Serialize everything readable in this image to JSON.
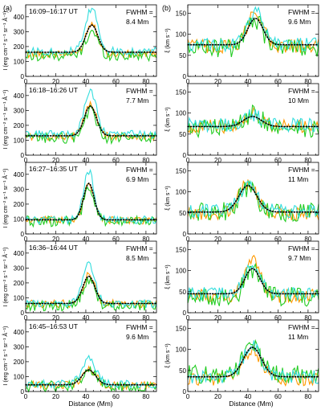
{
  "figure": {
    "panel_labels": [
      "(a)",
      "(b)"
    ],
    "xlabel": "Distance (Mm)",
    "left_ylabel": "I (erg cm⁻² s⁻¹ sr⁻¹ Å⁻¹)",
    "right_ylabel": "ξ (km s⁻¹)",
    "fwhm_label": "FWHM =",
    "colors": {
      "cyan": "#33dddd",
      "orange": "#ff9900",
      "green": "#22cc22",
      "fit": "#000000"
    }
  },
  "chart_data": [
    {
      "type": "line",
      "panel": "a-1",
      "time": "16:09–16:17 UT",
      "fwhm": "8.4 Mm",
      "xlim": [
        0,
        87
      ],
      "ylim": [
        0,
        480
      ],
      "yticks": [
        0,
        100,
        200,
        300,
        400
      ],
      "xticks": [
        0,
        20,
        40,
        60,
        80
      ],
      "base": {
        "cyan": 170,
        "orange": 150,
        "green": 140,
        "fit": 162
      },
      "peak": {
        "cyan": 455,
        "orange": 360,
        "green": 305,
        "fit": 345
      },
      "center": 44,
      "width": 4
    },
    {
      "type": "line",
      "panel": "a-2",
      "time": "16:18–16:26 UT",
      "fwhm": "7.7 Mm",
      "xlim": [
        0,
        87
      ],
      "ylim": [
        0,
        480
      ],
      "yticks": [
        0,
        100,
        200,
        300,
        400
      ],
      "xticks": [
        0,
        20,
        40,
        60,
        80
      ],
      "base": {
        "cyan": 140,
        "orange": 125,
        "green": 115,
        "fit": 130
      },
      "peak": {
        "cyan": 430,
        "orange": 335,
        "green": 300,
        "fit": 330
      },
      "center": 43,
      "width": 4
    },
    {
      "type": "line",
      "panel": "a-3",
      "time": "16:27–16:35 UT",
      "fwhm": "6.9 Mm",
      "xlim": [
        0,
        87
      ],
      "ylim": [
        0,
        480
      ],
      "yticks": [
        0,
        100,
        200,
        300,
        400
      ],
      "xticks": [
        0,
        20,
        40,
        60,
        80
      ],
      "base": {
        "cyan": 95,
        "orange": 92,
        "green": 85,
        "fit": 95
      },
      "peak": {
        "cyan": 420,
        "orange": 335,
        "green": 290,
        "fit": 340
      },
      "center": 42,
      "width": 3.5
    },
    {
      "type": "line",
      "panel": "a-4",
      "time": "16:36–16:44 UT",
      "fwhm": "8.5 Mm",
      "xlim": [
        0,
        87
      ],
      "ylim": [
        0,
        480
      ],
      "yticks": [
        0,
        100,
        200,
        300,
        400
      ],
      "xticks": [
        0,
        20,
        40,
        60,
        80
      ],
      "base": {
        "cyan": 60,
        "orange": 60,
        "green": 45,
        "fit": 62
      },
      "peak": {
        "cyan": 320,
        "orange": 250,
        "green": 220,
        "fit": 245
      },
      "center": 42,
      "width": 4
    },
    {
      "type": "line",
      "panel": "a-5",
      "time": "16:45–16:53 UT",
      "fwhm": "9.6 Mm",
      "xlim": [
        0,
        87
      ],
      "ylim": [
        0,
        480
      ],
      "yticks": [
        0,
        100,
        200,
        300,
        400
      ],
      "xticks": [
        0,
        20,
        40,
        60,
        80
      ],
      "base": {
        "cyan": 50,
        "orange": 42,
        "green": 35,
        "fit": 45
      },
      "peak": {
        "cyan": 220,
        "orange": 150,
        "green": 145,
        "fit": 145
      },
      "center": 42,
      "width": 4.5
    },
    {
      "type": "line",
      "panel": "b-1",
      "fwhm": "9.6 Mm",
      "xlim": [
        0,
        87
      ],
      "ylim": [
        0,
        170
      ],
      "yticks": [
        0,
        50,
        100,
        150
      ],
      "xticks": [
        0,
        20,
        40,
        60,
        80
      ],
      "base": {
        "cyan": 75,
        "orange": 72,
        "green": 68,
        "fit": 75
      },
      "peak": {
        "cyan": 155,
        "orange": 160,
        "green": 135,
        "fit": 138
      },
      "center": 45,
      "width": 5
    },
    {
      "type": "line",
      "panel": "b-2",
      "fwhm": "10 Mm",
      "xlim": [
        0,
        87
      ],
      "ylim": [
        0,
        170
      ],
      "yticks": [
        0,
        50,
        100,
        150
      ],
      "xticks": [
        0,
        20,
        40,
        60,
        80
      ],
      "base": {
        "cyan": 72,
        "orange": 68,
        "green": 65,
        "fit": 68
      },
      "peak": {
        "cyan": 95,
        "orange": 100,
        "green": 98,
        "fit": 92
      },
      "center": 43,
      "width": 6
    },
    {
      "type": "line",
      "panel": "b-3",
      "fwhm": "11 Mm",
      "xlim": [
        0,
        87
      ],
      "ylim": [
        0,
        170
      ],
      "yticks": [
        0,
        50,
        100,
        150
      ],
      "xticks": [
        0,
        20,
        40,
        60,
        80
      ],
      "base": {
        "cyan": 55,
        "orange": 48,
        "green": 52,
        "fit": 52
      },
      "peak": {
        "cyan": 115,
        "orange": 120,
        "green": 110,
        "fit": 115
      },
      "center": 40,
      "width": 6
    },
    {
      "type": "line",
      "panel": "b-4",
      "fwhm": "9.7 Mm",
      "xlim": [
        0,
        87
      ],
      "ylim": [
        0,
        170
      ],
      "yticks": [
        0,
        50,
        100,
        150
      ],
      "xticks": [
        0,
        20,
        40,
        60,
        80
      ],
      "base": {
        "cyan": 45,
        "orange": 40,
        "green": 38,
        "fit": 45
      },
      "peak": {
        "cyan": 110,
        "orange": 128,
        "green": 100,
        "fit": 105
      },
      "center": 43,
      "width": 5
    },
    {
      "type": "line",
      "panel": "b-5",
      "fwhm": "11 Mm",
      "xlim": [
        0,
        87
      ],
      "ylim": [
        0,
        170
      ],
      "yticks": [
        0,
        50,
        100,
        150
      ],
      "xticks": [
        0,
        20,
        40,
        60,
        80
      ],
      "base": {
        "cyan": 35,
        "orange": 30,
        "green": 40,
        "fit": 35
      },
      "peak": {
        "cyan": 110,
        "orange": 100,
        "green": 105,
        "fit": 105
      },
      "center": 43,
      "width": 6
    }
  ]
}
